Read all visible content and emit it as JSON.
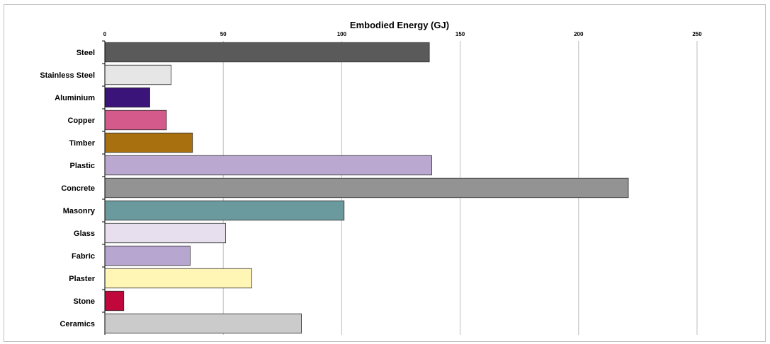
{
  "chart_data": {
    "type": "bar",
    "orientation": "horizontal",
    "title": "Embodied Energy  (GJ)",
    "xlabel": "",
    "ylabel": "",
    "xlim": [
      0,
      250
    ],
    "x_ticks": [
      "0",
      "50",
      "100",
      "150",
      "200",
      "250"
    ],
    "axis_position": "top",
    "grid": true,
    "legend": "none",
    "categories": [
      "Steel",
      "Stainless Steel",
      "Aluminium",
      "Copper",
      "Timber",
      "Plastic",
      "Concrete",
      "Masonry",
      "Glass",
      "Fabric",
      "Plaster",
      "Stone",
      "Ceramics"
    ],
    "values": [
      137,
      28,
      19,
      26,
      37,
      138,
      221,
      101,
      51,
      36,
      62,
      8,
      83
    ],
    "colors": [
      "#5a5a5a",
      "#e6e6e6",
      "#3a1478",
      "#d45a8c",
      "#a8700f",
      "#bba8d0",
      "#939393",
      "#6b9a9e",
      "#e7dfee",
      "#b7a6d0",
      "#fff5b5",
      "#c0083c",
      "#cbcbcb"
    ]
  }
}
